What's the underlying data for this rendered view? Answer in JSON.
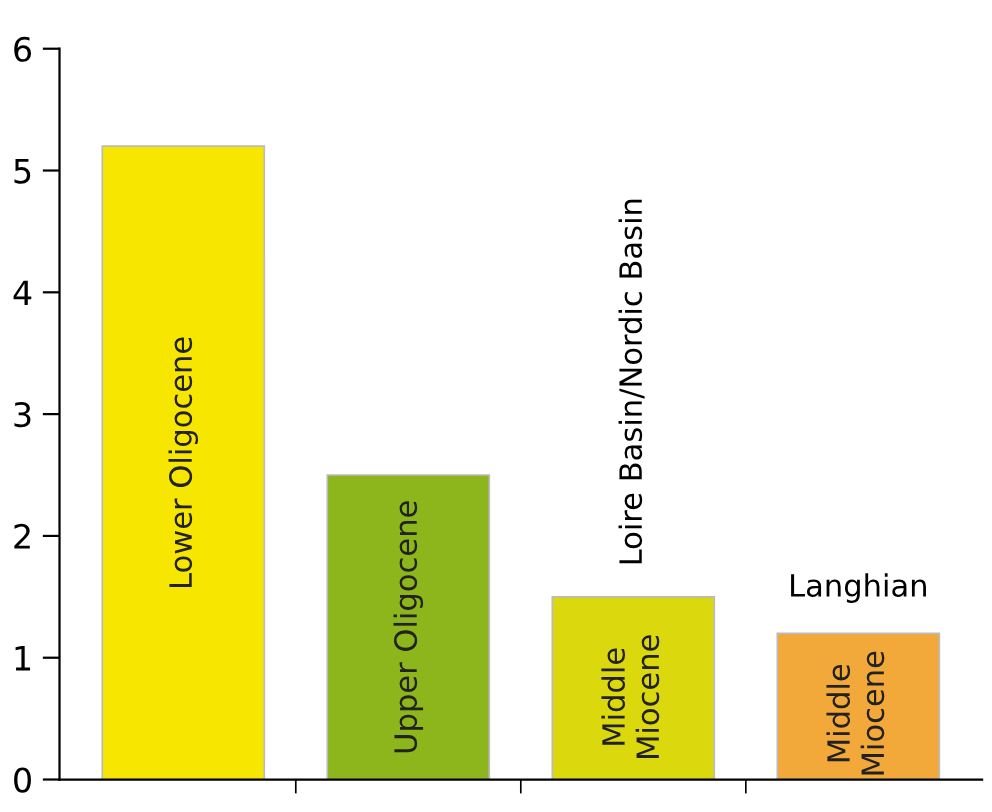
{
  "chart_data": {
    "type": "bar",
    "categories": [
      "Lower Oligocene",
      "Upper Oligocene",
      "Middle\nMiocene",
      "Middle\nMiocene"
    ],
    "values": [
      5.2,
      2.5,
      1.5,
      1.2
    ],
    "colors": [
      "#f7e600",
      "#8db51c",
      "#dcd80e",
      "#f3a93a"
    ],
    "ylim": [
      0,
      6
    ],
    "yticks": [
      0,
      1,
      2,
      3,
      4,
      5,
      6
    ],
    "grid": false,
    "annotations": [
      "Loire Basin/Nordic Basin",
      "Langhian"
    ]
  }
}
